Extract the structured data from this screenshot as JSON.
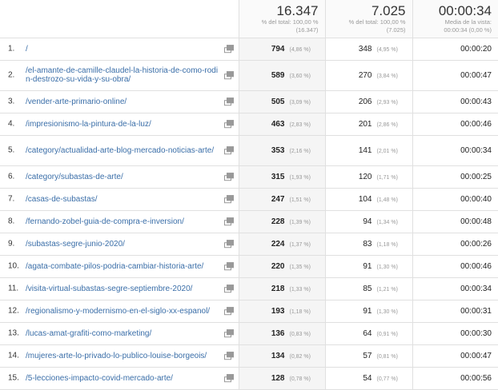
{
  "header": {
    "pageviews": {
      "total": "16.347",
      "sub1": "% del total: 100,00 %",
      "sub2": "(16.347)"
    },
    "unique": {
      "total": "7.025",
      "sub1": "% del total: 100,00 %",
      "sub2": "(7.025)"
    },
    "avgtime": {
      "total": "00:00:34",
      "sub1": "Media de la vista:",
      "sub2": "00:00:34 (0,00 %)"
    }
  },
  "rows": [
    {
      "idx": "1.",
      "page": "/",
      "pv": "794",
      "pvp": "(4,86 %)",
      "u": "348",
      "up": "(4,95 %)",
      "t": "00:00:20"
    },
    {
      "idx": "2.",
      "page": "/el-amante-de-camille-claudel-la-historia-de-como-rodin-destrozo-su-vida-y-su-obra/",
      "pv": "589",
      "pvp": "(3,60 %)",
      "u": "270",
      "up": "(3,84 %)",
      "t": "00:00:47"
    },
    {
      "idx": "3.",
      "page": "/vender-arte-primario-online/",
      "pv": "505",
      "pvp": "(3,09 %)",
      "u": "206",
      "up": "(2,93 %)",
      "t": "00:00:43"
    },
    {
      "idx": "4.",
      "page": "/impresionismo-la-pintura-de-la-luz/",
      "pv": "463",
      "pvp": "(2,83 %)",
      "u": "201",
      "up": "(2,86 %)",
      "t": "00:00:46"
    },
    {
      "idx": "5.",
      "page": "/category/actualidad-arte-blog-mercado-noticias-arte/",
      "pv": "353",
      "pvp": "(2,16 %)",
      "u": "141",
      "up": "(2,01 %)",
      "t": "00:00:34"
    },
    {
      "idx": "6.",
      "page": "/category/subastas-de-arte/",
      "pv": "315",
      "pvp": "(1,93 %)",
      "u": "120",
      "up": "(1,71 %)",
      "t": "00:00:25"
    },
    {
      "idx": "7.",
      "page": "/casas-de-subastas/",
      "pv": "247",
      "pvp": "(1,51 %)",
      "u": "104",
      "up": "(1,48 %)",
      "t": "00:00:40"
    },
    {
      "idx": "8.",
      "page": "/fernando-zobel-guia-de-compra-e-inversion/",
      "pv": "228",
      "pvp": "(1,39 %)",
      "u": "94",
      "up": "(1,34 %)",
      "t": "00:00:48"
    },
    {
      "idx": "9.",
      "page": "/subastas-segre-junio-2020/",
      "pv": "224",
      "pvp": "(1,37 %)",
      "u": "83",
      "up": "(1,18 %)",
      "t": "00:00:26"
    },
    {
      "idx": "10.",
      "page": "/agata-combate-pilos-podria-cambiar-historia-arte/",
      "pv": "220",
      "pvp": "(1,35 %)",
      "u": "91",
      "up": "(1,30 %)",
      "t": "00:00:46"
    },
    {
      "idx": "11.",
      "page": "/visita-virtual-subastas-segre-septiembre-2020/",
      "pv": "218",
      "pvp": "(1,33 %)",
      "u": "85",
      "up": "(1,21 %)",
      "t": "00:00:34"
    },
    {
      "idx": "12.",
      "page": "/regionalismo-y-modernismo-en-el-siglo-xx-espanol/",
      "pv": "193",
      "pvp": "(1,18 %)",
      "u": "91",
      "up": "(1,30 %)",
      "t": "00:00:31"
    },
    {
      "idx": "13.",
      "page": "/lucas-amat-grafiti-como-marketing/",
      "pv": "136",
      "pvp": "(0,83 %)",
      "u": "64",
      "up": "(0,91 %)",
      "t": "00:00:30"
    },
    {
      "idx": "14.",
      "page": "/mujeres-arte-lo-privado-lo-publico-louise-borgeois/",
      "pv": "134",
      "pvp": "(0,82 %)",
      "u": "57",
      "up": "(0,81 %)",
      "t": "00:00:47"
    },
    {
      "idx": "15.",
      "page": "/5-lecciones-impacto-covid-mercado-arte/",
      "pv": "128",
      "pvp": "(0,78 %)",
      "u": "54",
      "up": "(0,77 %)",
      "t": "00:00:56"
    }
  ],
  "colors": {
    "link": "#3a6ea8",
    "sorted_column_bg": "#f5f5f5"
  },
  "icons": {
    "row_action": "open-in-new-window-icon"
  }
}
